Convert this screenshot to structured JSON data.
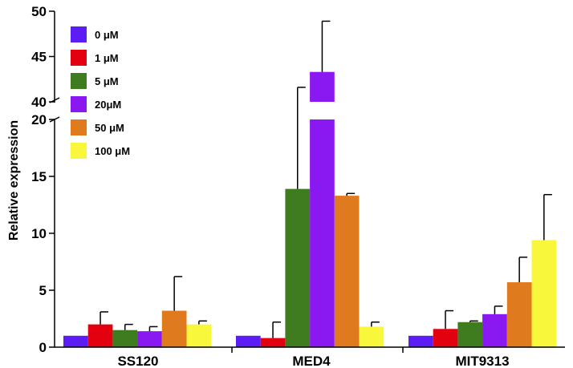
{
  "chart_data": {
    "type": "bar",
    "title": "",
    "xlabel": "",
    "ylabel": "Relative expression",
    "categories": [
      "SS120",
      "MED4",
      "MIT9313"
    ],
    "axis_break": {
      "lower_range": [
        0,
        20
      ],
      "upper_range": [
        40,
        50
      ]
    },
    "yticks_lower": [
      "0",
      "5",
      "10",
      "15",
      "20"
    ],
    "yticks_upper": [
      "40",
      "45",
      "50"
    ],
    "legend_position": "top-left",
    "series": [
      {
        "name": "0 μM",
        "color": "#5b1cf5",
        "values": [
          1.0,
          1.0,
          1.0
        ],
        "errors": [
          0.0,
          0.0,
          0.0
        ]
      },
      {
        "name": "1 μM",
        "color": "#e3000f",
        "values": [
          2.0,
          0.8,
          1.6
        ],
        "errors": [
          1.1,
          1.4,
          1.6
        ]
      },
      {
        "name": "5 μM",
        "color": "#3f7c20",
        "values": [
          1.5,
          13.9,
          2.2
        ],
        "errors": [
          0.5,
          27.7,
          0.1
        ]
      },
      {
        "name": "20μM",
        "color": "#8a18f0",
        "values": [
          1.4,
          43.3,
          2.9
        ],
        "errors": [
          0.4,
          5.6,
          0.7
        ]
      },
      {
        "name": "50 μM",
        "color": "#e07a1e",
        "values": [
          3.2,
          13.3,
          5.7
        ],
        "errors": [
          3.0,
          0.2,
          2.2
        ]
      },
      {
        "name": "100 μM",
        "color": "#f9f73b",
        "values": [
          2.0,
          1.8,
          9.4
        ],
        "errors": [
          0.3,
          0.4,
          4.0
        ]
      }
    ]
  }
}
